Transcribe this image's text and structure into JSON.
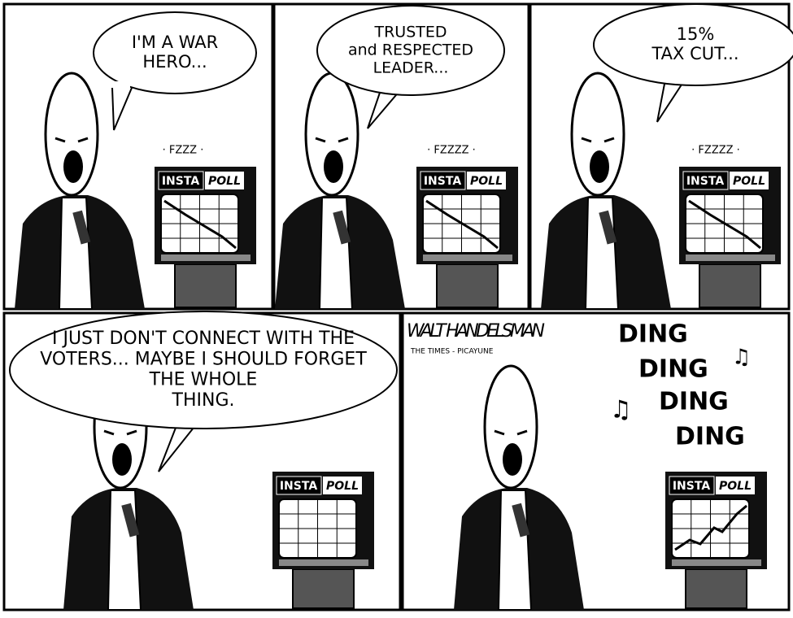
{
  "panels": [
    {
      "speech": [
        "I'M A WAR",
        "HERO..."
      ],
      "sound": "· FZZZ ·",
      "poll": {
        "left": "INSTA",
        "right": "POLL"
      }
    },
    {
      "speech": [
        "TRUSTED",
        "and RESPECTED",
        "LEADER..."
      ],
      "sound": "· FZZZZ ·",
      "poll": {
        "left": "INSTA",
        "right": "POLL"
      }
    },
    {
      "speech": [
        "15%",
        "TAX CUT..."
      ],
      "sound": "· FZZZZ ·",
      "poll": {
        "left": "INSTA",
        "right": "POLL"
      }
    },
    {
      "speech": [
        "I JUST DON'T CONNECT WITH THE",
        "VOTERS... MAYBE I SHOULD FORGET",
        "THE WHOLE",
        "THING."
      ],
      "poll": {
        "left": "INSTA",
        "right": "POLL"
      }
    },
    {
      "signature": "WALT HANDELSMAN",
      "credit": "THE TIMES - PICAYUNE",
      "sounds": [
        "DING",
        "DING",
        "DING",
        "DING"
      ],
      "poll": {
        "left": "INSTA",
        "right": "POLL"
      }
    }
  ]
}
